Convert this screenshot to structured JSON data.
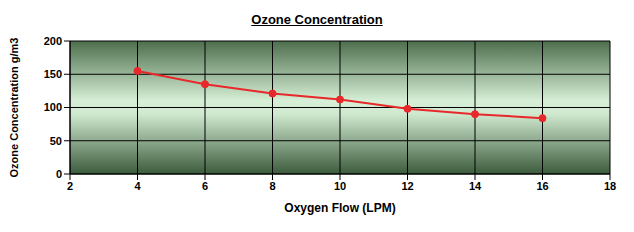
{
  "chart_data": {
    "type": "line",
    "title": "Ozone Concentration",
    "x_label": "Oxygen Flow (LPM)",
    "y_label": "Ozone Concentration g/m3",
    "x": [
      4,
      6,
      8,
      10,
      12,
      14,
      16
    ],
    "values": [
      155,
      135,
      121,
      112,
      98,
      90,
      84
    ],
    "color": "#e8282a",
    "marker": "circle",
    "line_style": "solid",
    "xlim": [
      2,
      18
    ],
    "xticks": [
      2,
      4,
      6,
      8,
      10,
      12,
      14,
      16,
      18
    ],
    "ylim": [
      0,
      200
    ],
    "yticks": [
      0,
      50,
      100,
      150,
      200
    ],
    "grid": true
  }
}
